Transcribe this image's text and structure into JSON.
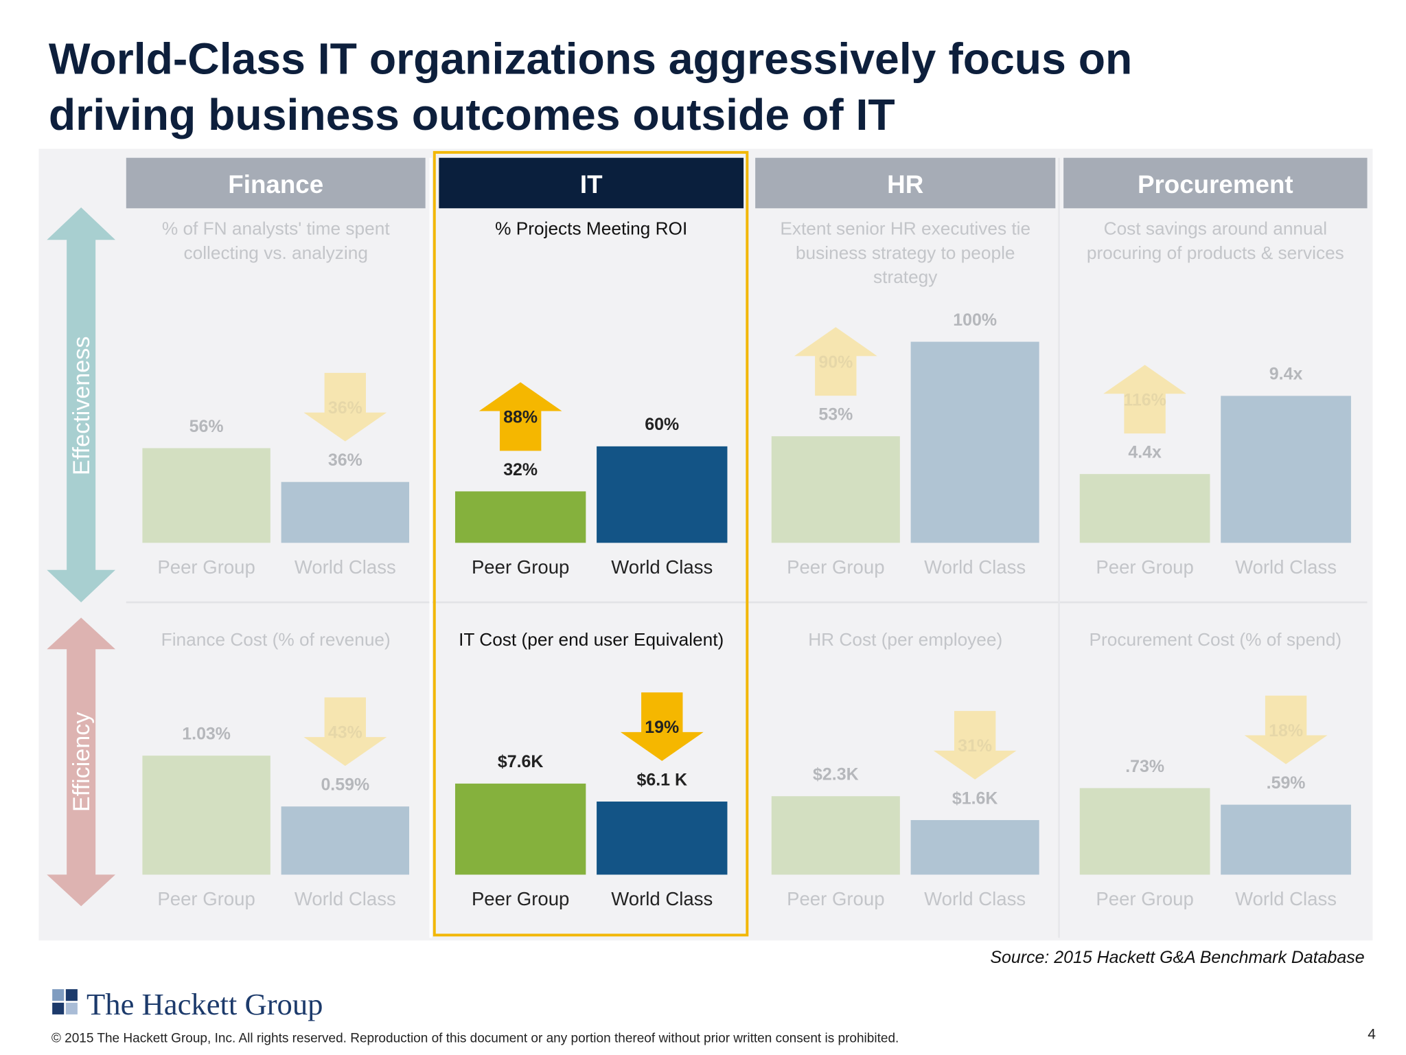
{
  "title": [
    "World-Class IT organizations aggressively focus on",
    "driving business outcomes outside of IT"
  ],
  "columns": [
    "Finance",
    "IT",
    "HR",
    "Procurement"
  ],
  "row_labels": [
    "Effectiveness",
    "Efficiency"
  ],
  "source": "Source: 2015 Hackett G&A Benchmark Database",
  "logo": "The Hackett Group",
  "copyright": "© 2015 The Hackett Group, Inc.  All rights reserved. Reproduction of this document or any portion thereof without prior written consent is prohibited.",
  "page_number": "4",
  "chart_data": [
    {
      "type": "bar",
      "subtitle": [
        "% of FN analysts' time spent",
        "collecting vs. analyzing"
      ],
      "categories": [
        "Peer Group",
        "World Class"
      ],
      "values": [
        56,
        36
      ],
      "value_labels": [
        "56%",
        "36%"
      ],
      "arrow": {
        "text": "36%",
        "direction": "down"
      },
      "colors": [
        "#d3dfc1",
        "#b0c4d3"
      ],
      "arrow_color": "#f6e5b0"
    },
    {
      "type": "bar",
      "subtitle": [
        "Finance Cost (% of revenue)"
      ],
      "categories": [
        "Peer Group",
        "World Class"
      ],
      "values": [
        1.03,
        0.59
      ],
      "value_labels": [
        "1.03%",
        "0.59%"
      ],
      "arrow": {
        "text": "43%",
        "direction": "down"
      },
      "colors": [
        "#d3dfc1",
        "#b0c4d3"
      ],
      "arrow_color": "#f6e5b0"
    },
    {
      "type": "bar",
      "subtitle": [
        "% Projects Meeting ROI"
      ],
      "categories": [
        "Peer Group",
        "World Class"
      ],
      "values": [
        32,
        60
      ],
      "value_labels": [
        "32%",
        "60%"
      ],
      "arrow": {
        "text": "88%",
        "direction": "up"
      },
      "colors": [
        "#85b13d",
        "#135486"
      ],
      "arrow_color": "#f5b700"
    },
    {
      "type": "bar",
      "subtitle": [
        "IT Cost (per end user Equivalent)"
      ],
      "categories": [
        "Peer Group",
        "World Class"
      ],
      "values": [
        7600,
        6100
      ],
      "value_labels": [
        "$7.6K",
        "$6.1 K"
      ],
      "arrow": {
        "text": "19%",
        "direction": "down"
      },
      "colors": [
        "#85b13d",
        "#135486"
      ],
      "arrow_color": "#f5b700"
    },
    {
      "type": "bar",
      "subtitle": [
        "Extent senior HR executives tie",
        "business strategy to people",
        "strategy"
      ],
      "categories": [
        "Peer Group",
        "World Class"
      ],
      "values": [
        53,
        100
      ],
      "value_labels": [
        "53%",
        "100%"
      ],
      "arrow": {
        "text": "90%",
        "direction": "up"
      },
      "colors": [
        "#d3dfc1",
        "#b0c4d3"
      ],
      "arrow_color": "#f6e5b0"
    },
    {
      "type": "bar",
      "subtitle": [
        "HR Cost (per employee)"
      ],
      "categories": [
        "Peer Group",
        "World Class"
      ],
      "values": [
        2300,
        1600
      ],
      "value_labels": [
        "$2.3K",
        "$1.6K"
      ],
      "arrow": {
        "text": "31%",
        "direction": "down"
      },
      "colors": [
        "#d3dfc1",
        "#b0c4d3"
      ],
      "arrow_color": "#f6e5b0"
    },
    {
      "type": "bar",
      "subtitle": [
        "Cost savings around annual",
        "procuring of products & services"
      ],
      "categories": [
        "Peer Group",
        "World Class"
      ],
      "values": [
        4.4,
        9.4
      ],
      "value_labels": [
        "4.4x",
        "9.4x"
      ],
      "arrow": {
        "text": "116%",
        "direction": "up"
      },
      "colors": [
        "#d3dfc1",
        "#b0c4d3"
      ],
      "arrow_color": "#f6e5b0"
    },
    {
      "type": "bar",
      "subtitle": [
        "Procurement Cost (% of spend)"
      ],
      "categories": [
        "Peer Group",
        "World Class"
      ],
      "values": [
        0.73,
        0.59
      ],
      "value_labels": [
        ".73%",
        ".59%"
      ],
      "arrow": {
        "text": "18%",
        "direction": "down"
      },
      "colors": [
        "#d3dfc1",
        "#b0c4d3"
      ],
      "arrow_color": "#f6e5b0"
    }
  ]
}
